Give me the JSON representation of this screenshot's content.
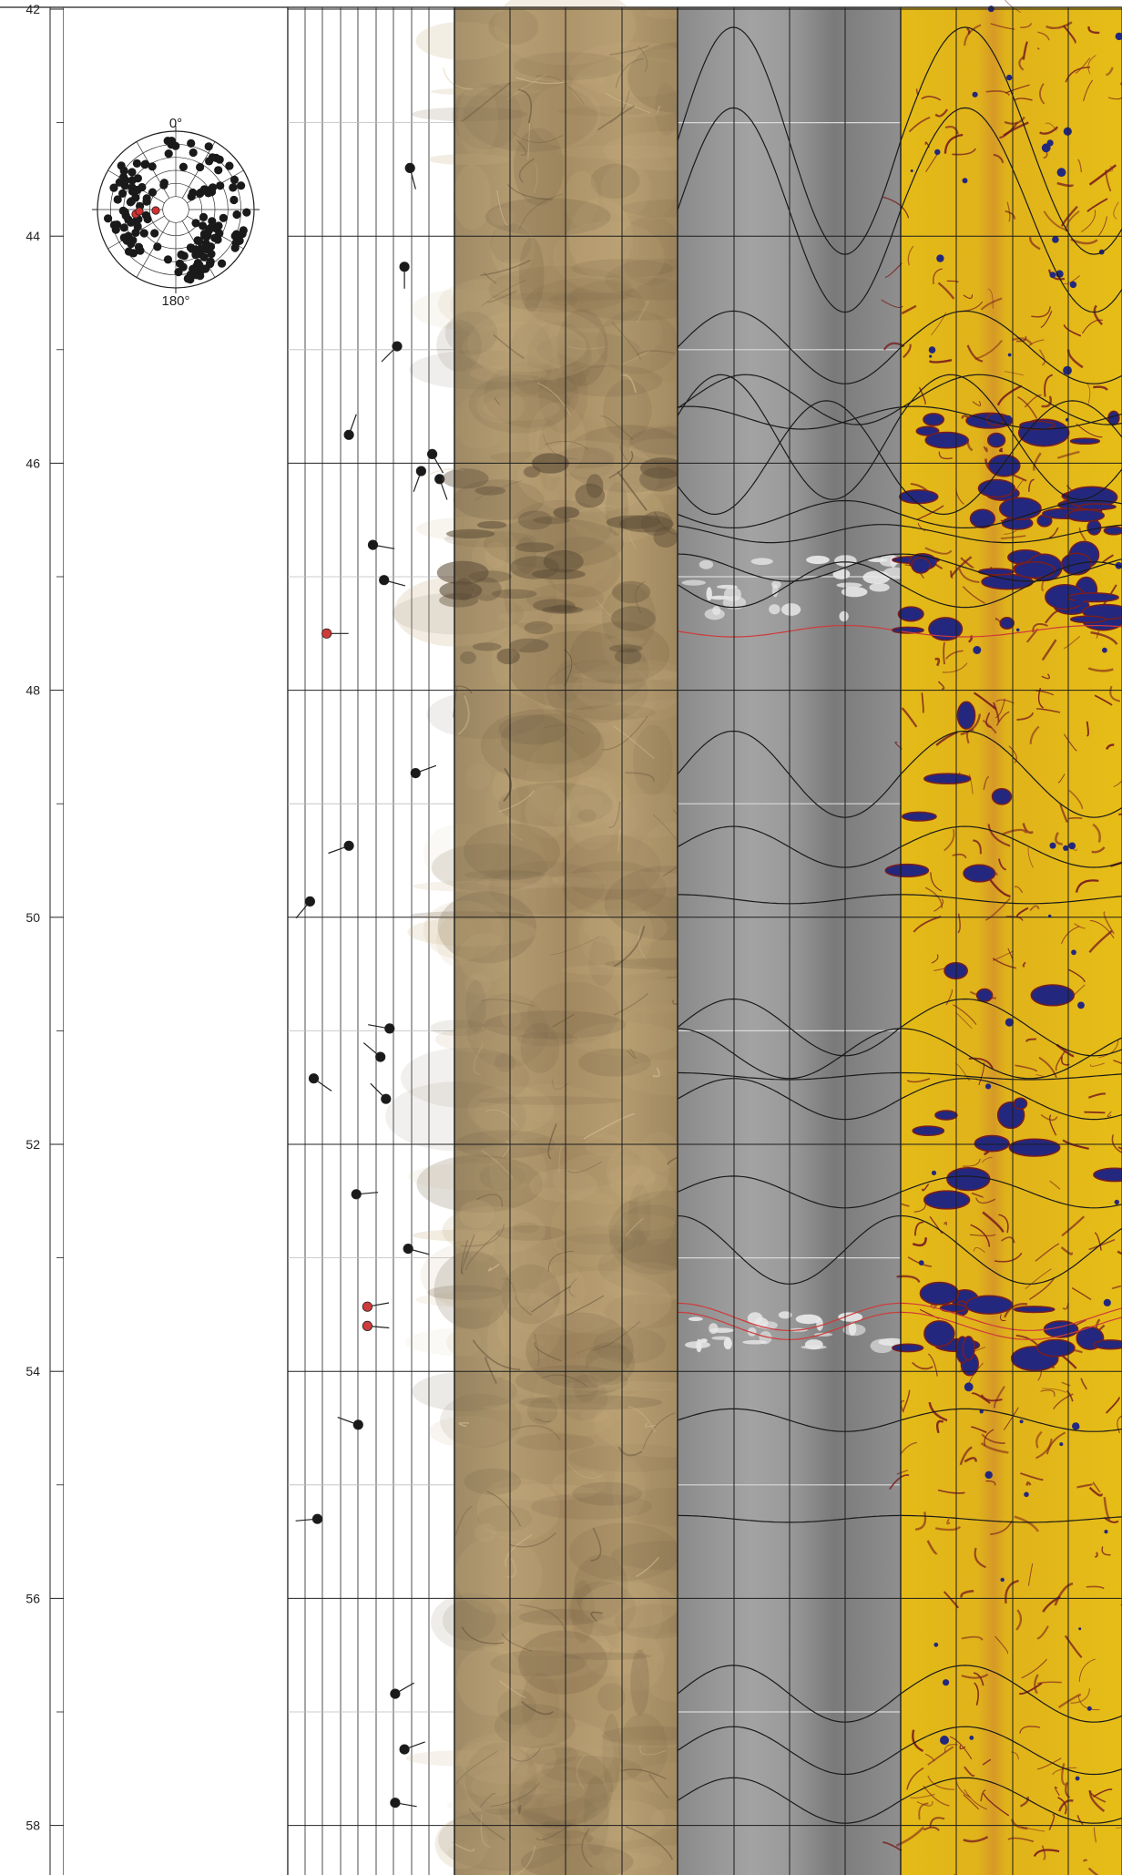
{
  "depth_axis": {
    "ticks": [
      "42",
      "44",
      "46",
      "48",
      "50",
      "52",
      "54",
      "56",
      "58"
    ],
    "min": 42,
    "max": 58.8
  },
  "stereonet": {
    "north_label": "0°",
    "south_label": "180°",
    "black_color": "#1a1a1a",
    "red_color": "#d43030"
  },
  "tadpoles": [
    {
      "depth": 43.4,
      "dip": 66,
      "azimuth": 165,
      "color": "black"
    },
    {
      "depth": 44.27,
      "dip": 63,
      "azimuth": 180,
      "color": "black"
    },
    {
      "depth": 44.97,
      "dip": 59,
      "azimuth": 225,
      "color": "black"
    },
    {
      "depth": 45.75,
      "dip": 33,
      "azimuth": 20,
      "color": "black"
    },
    {
      "depth": 45.92,
      "dip": 78,
      "azimuth": 150,
      "color": "black"
    },
    {
      "depth": 46.07,
      "dip": 72,
      "azimuth": 200,
      "color": "black"
    },
    {
      "depth": 46.14,
      "dip": 82,
      "azimuth": 160,
      "color": "black"
    },
    {
      "depth": 46.72,
      "dip": 46,
      "azimuth": 100,
      "color": "black"
    },
    {
      "depth": 47.03,
      "dip": 52,
      "azimuth": 105,
      "color": "black"
    },
    {
      "depth": 47.5,
      "dip": 21,
      "azimuth": 90,
      "color": "red"
    },
    {
      "depth": 48.73,
      "dip": 69,
      "azimuth": 70,
      "color": "black"
    },
    {
      "depth": 49.37,
      "dip": 33,
      "azimuth": 250,
      "color": "black"
    },
    {
      "depth": 49.86,
      "dip": 12,
      "azimuth": 220,
      "color": "black"
    },
    {
      "depth": 50.98,
      "dip": 55,
      "azimuth": 280,
      "color": "black"
    },
    {
      "depth": 51.23,
      "dip": 50,
      "azimuth": 310,
      "color": "black"
    },
    {
      "depth": 51.42,
      "dip": 14,
      "azimuth": 125,
      "color": "black"
    },
    {
      "depth": 51.6,
      "dip": 53,
      "azimuth": 315,
      "color": "black"
    },
    {
      "depth": 52.44,
      "dip": 37,
      "azimuth": 85,
      "color": "black"
    },
    {
      "depth": 52.92,
      "dip": 65,
      "azimuth": 105,
      "color": "black"
    },
    {
      "depth": 53.43,
      "dip": 43,
      "azimuth": 80,
      "color": "red"
    },
    {
      "depth": 53.6,
      "dip": 43,
      "azimuth": 95,
      "color": "red"
    },
    {
      "depth": 54.47,
      "dip": 38,
      "azimuth": 290,
      "color": "black"
    },
    {
      "depth": 55.3,
      "dip": 16,
      "azimuth": 265,
      "color": "black"
    },
    {
      "depth": 56.84,
      "dip": 58,
      "azimuth": 60,
      "color": "black"
    },
    {
      "depth": 57.33,
      "dip": 63,
      "azimuth": 70,
      "color": "black"
    },
    {
      "depth": 57.8,
      "dip": 58,
      "azimuth": 100,
      "color": "black"
    }
  ],
  "sinusoids": [
    {
      "depth": 43.16,
      "amp": 1.0,
      "azimuth": 270,
      "color": "black"
    },
    {
      "depth": 43.77,
      "amp": 0.9,
      "azimuth": 270,
      "color": "black"
    },
    {
      "depth": 44.98,
      "amp": 0.32,
      "azimuth": 270,
      "color": "black"
    },
    {
      "depth": 45.44,
      "amp": 0.22,
      "azimuth": 290,
      "color": "black"
    },
    {
      "depth": 45.6,
      "amp": 0.1,
      "azimuth": 200,
      "color": "black"
    },
    {
      "depth": 45.77,
      "amp": 0.55,
      "azimuth": 250,
      "color": "black"
    },
    {
      "depth": 45.95,
      "amp": 0.5,
      "azimuth": 60,
      "color": "black"
    },
    {
      "depth": 46.45,
      "amp": 0.12,
      "azimuth": 90,
      "color": "black"
    },
    {
      "depth": 46.62,
      "amp": 0.08,
      "azimuth": 150,
      "color": "black"
    },
    {
      "depth": 46.92,
      "amp": 0.12,
      "azimuth": 180,
      "color": "black"
    },
    {
      "depth": 47.07,
      "amp": 0.2,
      "azimuth": 90,
      "color": "black"
    },
    {
      "depth": 47.48,
      "amp": 0.05,
      "azimuth": 90,
      "color": "red"
    },
    {
      "depth": 48.74,
      "amp": 0.38,
      "azimuth": 270,
      "color": "black"
    },
    {
      "depth": 49.38,
      "amp": 0.18,
      "azimuth": 270,
      "color": "black"
    },
    {
      "depth": 49.84,
      "amp": 0.04,
      "azimuth": 180,
      "color": "black"
    },
    {
      "depth": 50.97,
      "amp": 0.25,
      "azimuth": 270,
      "color": "black"
    },
    {
      "depth": 51.2,
      "amp": 0.22,
      "azimuth": 180,
      "color": "black"
    },
    {
      "depth": 51.4,
      "amp": 0.03,
      "azimuth": 180,
      "color": "black"
    },
    {
      "depth": 51.6,
      "amp": 0.18,
      "azimuth": 270,
      "color": "black"
    },
    {
      "depth": 52.42,
      "amp": 0.14,
      "azimuth": 270,
      "color": "black"
    },
    {
      "depth": 52.93,
      "amp": 0.3,
      "azimuth": 180,
      "color": "black"
    },
    {
      "depth": 53.52,
      "amp": 0.12,
      "azimuth": 180,
      "color": "red"
    },
    {
      "depth": 53.6,
      "amp": 0.12,
      "azimuth": 180,
      "color": "red"
    },
    {
      "depth": 54.43,
      "amp": 0.1,
      "azimuth": 270,
      "color": "black"
    },
    {
      "depth": 55.3,
      "amp": 0.03,
      "azimuth": 180,
      "color": "black"
    },
    {
      "depth": 56.84,
      "amp": 0.25,
      "azimuth": 270,
      "color": "black"
    },
    {
      "depth": 57.34,
      "amp": 0.21,
      "azimuth": 270,
      "color": "black"
    },
    {
      "depth": 57.78,
      "amp": 0.2,
      "azimuth": 270,
      "color": "black"
    },
    {
      "depth": 58.64,
      "amp": 0.1,
      "azimuth": 270,
      "color": "black"
    }
  ],
  "colors": {
    "core_base": "#a98f66",
    "core_light": "#c8ae80",
    "core_dark": "#6f5d43",
    "gray_base": "#8e8e8e",
    "gray_light": "#a7a7a7",
    "gray_dark": "#737373",
    "yellow_base": "#e2b816",
    "yellow_stripe": "#d79d22",
    "vug_blue": "#23287e",
    "fracture_red": "#7a1d1d",
    "red_line": "#cf3a3a",
    "grid": "#1c1c1c"
  }
}
